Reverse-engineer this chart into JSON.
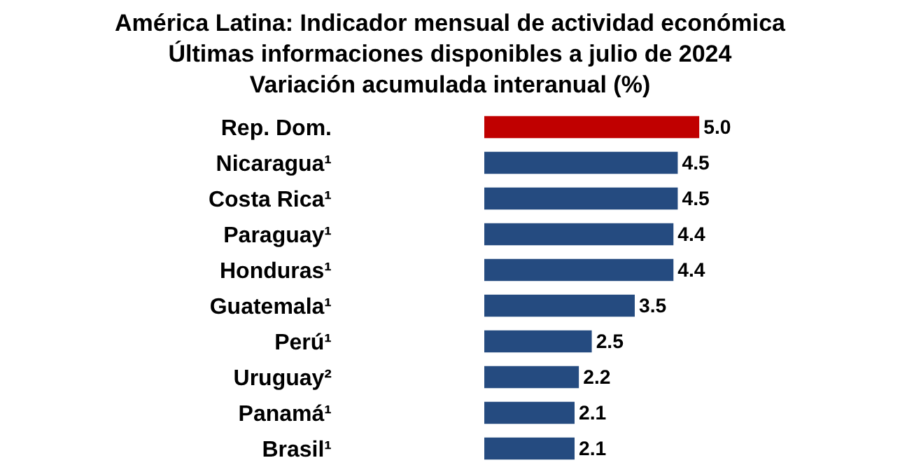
{
  "chart_data": {
    "type": "bar",
    "orientation": "horizontal",
    "title": "América Latina: Indicador mensual de actividad económica\nÚltimas informaciones disponibles a julio de 2024\nVariación acumulada interanual (%)",
    "categories": [
      "Rep. Dom.",
      "Nicaragua¹",
      "Costa Rica¹",
      "Paraguay¹",
      "Honduras¹",
      "Guatemala¹",
      "Perú¹",
      "Uruguay²",
      "Panamá¹",
      "Brasil¹"
    ],
    "values": [
      5.0,
      4.5,
      4.5,
      4.4,
      4.4,
      3.5,
      2.5,
      2.2,
      2.1,
      2.1
    ],
    "colors": [
      "#c00000",
      "#254b80",
      "#254b80",
      "#254b80",
      "#254b80",
      "#254b80",
      "#254b80",
      "#254b80",
      "#254b80",
      "#254b80"
    ],
    "value_labels": [
      "5.0",
      "4.5",
      "4.5",
      "4.4",
      "4.4",
      "3.5",
      "2.5",
      "2.2",
      "2.1",
      "2.1"
    ],
    "tick_labels": "y",
    "grid": false,
    "legend": false
  }
}
